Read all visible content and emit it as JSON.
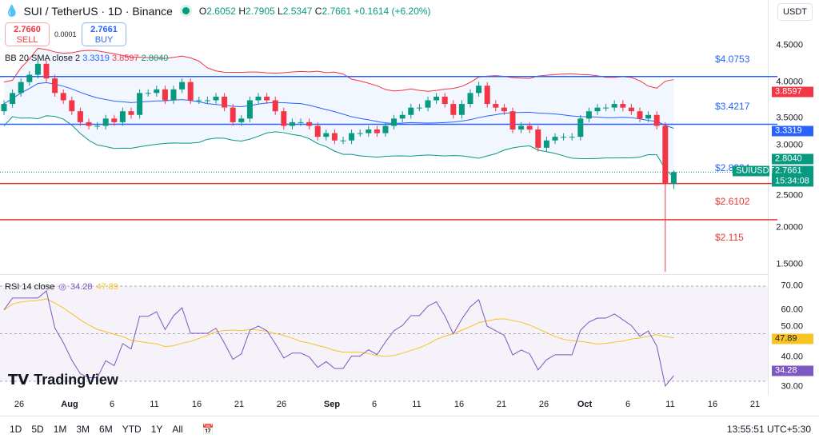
{
  "header": {
    "symbol": "SUI / TetherUS · 1D · Binance",
    "open_label": "O",
    "open": "2.6052",
    "high_label": "H",
    "high": "2.7905",
    "low_label": "L",
    "low": "2.5347",
    "close_label": "C",
    "close": "2.7661",
    "change": "+0.1614 (+6.20%)"
  },
  "trade": {
    "sell_price": "2.7660",
    "sell_label": "SELL",
    "spread": "0.0001",
    "buy_price": "2.7661",
    "buy_label": "BUY"
  },
  "bb": {
    "label": "BB 20 SMA close 2",
    "basis": "3.3319",
    "upper": "3.8597",
    "lower": "2.8040"
  },
  "rsi": {
    "label": "RSI 14 close",
    "value": "34.28",
    "ma": "47.89"
  },
  "currency": "USDT",
  "price_axis": [
    "4.5000",
    "4.0000",
    "3.5000",
    "3.0000",
    "2.5000",
    "2.0000",
    "1.5000"
  ],
  "rsi_axis": [
    "70.00",
    "60.00",
    "50.00",
    "40.00",
    "30.00"
  ],
  "price_tags": {
    "upper": "3.8597",
    "basis": "3.3319",
    "lower": "2.8040",
    "last": "2.7661",
    "symbol": "SUIUSDT",
    "countdown": "15:34:08"
  },
  "levels": [
    {
      "label": "$4.0753",
      "price": 4.0753,
      "kind": "line",
      "color": "#2962ff"
    },
    {
      "label": "$3.4217",
      "price": 3.4217,
      "kind": "line",
      "color": "#2962ff"
    },
    {
      "label": "$2.8224",
      "price": 2.8224,
      "kind": "label",
      "color": "#2962ff"
    },
    {
      "label": "$2.6102",
      "price": 2.6102,
      "kind": "line",
      "color": "#e53935"
    },
    {
      "label": "$2.115",
      "price": 2.115,
      "kind": "line",
      "color": "#e53935"
    }
  ],
  "x_axis": [
    "26",
    "Aug",
    "6",
    "11",
    "16",
    "21",
    "26",
    "Sep",
    "6",
    "11",
    "16",
    "21",
    "26",
    "Oct",
    "6",
    "11",
    "16",
    "21"
  ],
  "brand": "TradingView",
  "ranges": [
    "1D",
    "5D",
    "1M",
    "3M",
    "6M",
    "YTD",
    "1Y",
    "All"
  ],
  "clock": "13:55:51 UTC+5:30",
  "colors": {
    "up": "#089981",
    "down": "#f23645",
    "bb_basis": "#2962ff",
    "bb_upper": "#f23645",
    "bb_lower": "#089981",
    "rsi": "#7e57c2",
    "rsi_ma": "#f7c325"
  },
  "closes": [
    3.7,
    3.85,
    4.0,
    4.1,
    4.25,
    4.05,
    3.85,
    3.75,
    3.6,
    3.45,
    3.4,
    3.4,
    3.5,
    3.45,
    3.6,
    3.55,
    3.85,
    3.85,
    3.9,
    3.75,
    3.9,
    4.0,
    3.75,
    3.75,
    3.75,
    3.8,
    3.65,
    3.45,
    3.5,
    3.75,
    3.8,
    3.75,
    3.6,
    3.4,
    3.45,
    3.45,
    3.4,
    3.25,
    3.3,
    3.2,
    3.2,
    3.3,
    3.3,
    3.35,
    3.3,
    3.4,
    3.5,
    3.55,
    3.65,
    3.65,
    3.75,
    3.8,
    3.7,
    3.55,
    3.7,
    3.85,
    3.95,
    3.7,
    3.65,
    3.6,
    3.35,
    3.4,
    3.35,
    3.1,
    3.2,
    3.25,
    3.25,
    3.25,
    3.5,
    3.6,
    3.65,
    3.65,
    3.7,
    3.65,
    3.6,
    3.5,
    3.55,
    3.4,
    2.6052,
    2.7661
  ],
  "last_candle": {
    "open": 2.6052,
    "high": 2.7905,
    "low": 2.5347,
    "close": 2.7661
  },
  "crash_candle_low": 1.4
}
